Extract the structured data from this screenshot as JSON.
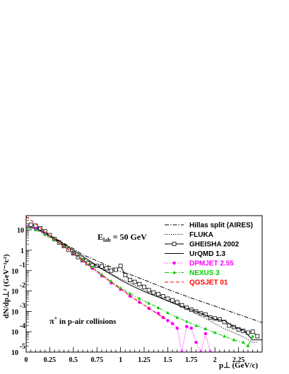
{
  "chart_data": {
    "type": "line",
    "xlabel": "p⊥ (GeV/c)",
    "ylabel": "dN/dp⊥² (GeV⁻²c²)",
    "xlim": [
      0,
      2.5
    ],
    "ylim": [
      1e-05,
      50
    ],
    "y_scale": "log",
    "x_ticks": [
      "0",
      "0.25",
      "0.5",
      "0.75",
      "1",
      "1.25",
      "1.5",
      "1.75",
      "2",
      "2.25"
    ],
    "y_ticks": [
      {
        "base": "10",
        "exp": "-5"
      },
      {
        "base": "10",
        "exp": "-4"
      },
      {
        "base": "10",
        "exp": "-3"
      },
      {
        "base": "10",
        "exp": "-2"
      },
      {
        "base": "10",
        "exp": "-1"
      },
      {
        "base": "1",
        "exp": ""
      },
      {
        "base": "10",
        "exp": ""
      }
    ],
    "annotation_energy": {
      "prefix": "E",
      "sub": "lab",
      "suffix": " = 50 GeV"
    },
    "annotation_particle": {
      "prefix": "π",
      "sup": "+",
      "suffix": "  in p-air collisions"
    },
    "legend_position": "top-right",
    "series": [
      {
        "name": "Hillas split (AIRES)",
        "color": "#000000",
        "dash": "dashdot",
        "x": [
          0.02,
          0.1,
          0.2,
          0.3,
          0.4,
          0.5,
          0.6,
          0.75,
          0.9,
          1.0,
          1.1,
          1.25,
          1.5,
          1.75,
          2.0,
          2.25,
          2.5
        ],
        "y": [
          18,
          14,
          7,
          4,
          2.2,
          1.2,
          0.6,
          0.3,
          0.15,
          0.09,
          0.065,
          0.035,
          0.012,
          0.0045,
          0.0018,
          0.0007,
          0.00028
        ]
      },
      {
        "name": "FLUKA",
        "color": "#000000",
        "dash": "dot",
        "x": [
          0.02,
          0.1,
          0.2,
          0.3,
          0.4,
          0.5,
          0.6,
          0.75,
          0.9,
          1.0,
          1.1,
          1.25,
          1.4,
          1.5,
          1.65,
          1.75,
          1.9,
          2.0,
          2.1,
          2.2,
          2.3,
          2.4,
          2.45
        ],
        "y": [
          15,
          12,
          6.5,
          3.5,
          1.7,
          0.85,
          0.42,
          0.17,
          0.07,
          0.04,
          0.025,
          0.011,
          0.0055,
          0.0032,
          0.0016,
          0.001,
          0.00045,
          0.00025,
          0.00014,
          9e-05,
          5.5e-05,
          3e-05,
          3e-05
        ]
      },
      {
        "name": "GHEISHA 2002",
        "color": "#000000",
        "dash": "solid",
        "marker": "square",
        "x": [
          0.05,
          0.1,
          0.15,
          0.2,
          0.25,
          0.3,
          0.35,
          0.4,
          0.45,
          0.5,
          0.55,
          0.6,
          0.65,
          0.7,
          0.75,
          0.8,
          0.85,
          0.9,
          0.95,
          1.0,
          1.05,
          1.1,
          1.15,
          1.2,
          1.25,
          1.3,
          1.35,
          1.4,
          1.45,
          1.5,
          1.55,
          1.6,
          1.65,
          1.7,
          1.75,
          1.8,
          1.85,
          1.9,
          1.95,
          2.0,
          2.05,
          2.1,
          2.15,
          2.2,
          2.25,
          2.3,
          2.35,
          2.4,
          2.45
        ],
        "y": [
          18,
          16,
          12,
          8.5,
          5.5,
          3.6,
          2.4,
          1.6,
          1.05,
          0.7,
          0.46,
          0.32,
          0.23,
          0.18,
          0.17,
          0.16,
          0.13,
          0.1,
          0.11,
          0.17,
          0.06,
          0.035,
          0.028,
          0.022,
          0.016,
          0.011,
          0.0085,
          0.007,
          0.0055,
          0.0042,
          0.0035,
          0.0028,
          0.002,
          0.0015,
          0.0012,
          0.001,
          0.0008,
          0.0007,
          0.0005,
          0.00045,
          0.0004,
          0.0003,
          0.0002,
          0.00017,
          0.00013,
          0.00011,
          9e-05,
          0.0001,
          6e-05
        ]
      },
      {
        "name": "UrQMD 1.3",
        "color": "#000000",
        "dash": "solid",
        "x": [
          0.02,
          0.1,
          0.2,
          0.3,
          0.4,
          0.5,
          0.6,
          0.7,
          0.8,
          0.9,
          1.0,
          1.1,
          1.2,
          1.3,
          1.4,
          1.5,
          1.6,
          1.7,
          1.8,
          1.9,
          2.0,
          2.1,
          2.2,
          2.3,
          2.4,
          2.5
        ],
        "y": [
          14,
          12,
          7,
          3.8,
          2.0,
          1.0,
          0.5,
          0.25,
          0.12,
          0.065,
          0.035,
          0.02,
          0.012,
          0.0075,
          0.005,
          0.0032,
          0.0022,
          0.0014,
          0.001,
          0.00065,
          0.0004,
          0.00035,
          0.00018,
          0.00012,
          4e-05,
          4e-05
        ]
      },
      {
        "name": "DPMJET 2.55",
        "color": "#ff00ff",
        "dash": "dot",
        "marker": "dot",
        "x": [
          0.02,
          0.1,
          0.2,
          0.3,
          0.4,
          0.5,
          0.6,
          0.7,
          0.8,
          0.9,
          1.0,
          1.1,
          1.2,
          1.3,
          1.4,
          1.45,
          1.5,
          1.55,
          1.6,
          1.65,
          1.7,
          1.75,
          1.8,
          1.85,
          1.9,
          1.95
        ],
        "y": [
          14,
          11,
          6,
          3.2,
          1.5,
          0.7,
          0.3,
          0.13,
          0.055,
          0.025,
          0.012,
          0.0055,
          0.0028,
          0.0014,
          0.0008,
          0.0005,
          0.00035,
          0.00025,
          0.00015,
          1e-05,
          0.00018,
          0.00015,
          3e-05,
          1e-05,
          8e-05,
          1e-05
        ]
      },
      {
        "name": "NEXUS 3",
        "color": "#00cc00",
        "dash": "dashdot",
        "marker": "triangle",
        "x": [
          0.02,
          0.1,
          0.2,
          0.3,
          0.4,
          0.5,
          0.6,
          0.7,
          0.8,
          0.9,
          1.0,
          1.1,
          1.2,
          1.3,
          1.4,
          1.5,
          1.6,
          1.7,
          1.8,
          1.9,
          2.0,
          2.1,
          2.2,
          2.3,
          2.35,
          2.4
        ],
        "y": [
          13,
          10,
          6,
          3.2,
          1.6,
          0.75,
          0.35,
          0.15,
          0.065,
          0.03,
          0.014,
          0.0075,
          0.0042,
          0.0025,
          0.0015,
          0.00085,
          0.0005,
          0.00032,
          0.0002,
          0.00014,
          9e-05,
          6e-05,
          4e-05,
          3e-05,
          2e-05,
          6e-05
        ]
      },
      {
        "name": "QGSJET 01",
        "color": "#ff0000",
        "dash": "dash",
        "x": [
          0.0,
          0.1,
          0.2,
          0.3,
          0.4,
          0.5,
          0.6,
          0.7,
          0.8,
          0.9,
          1.0,
          1.1,
          1.2,
          1.3,
          1.4,
          1.5
        ],
        "y": [
          45,
          20,
          8,
          3.5,
          1.6,
          0.7,
          0.32,
          0.14,
          0.06,
          0.028,
          0.013,
          0.006,
          0.0029,
          0.0014,
          0.0007,
          0.00035
        ]
      }
    ]
  }
}
